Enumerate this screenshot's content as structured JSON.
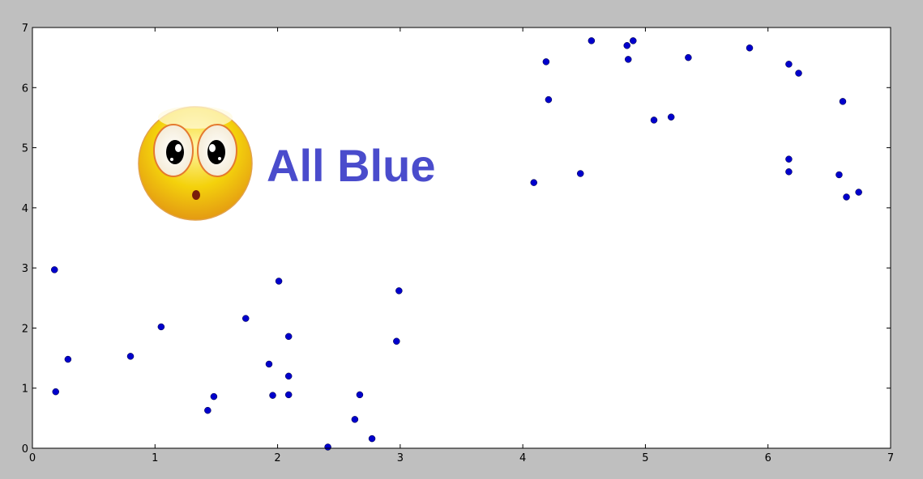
{
  "chart_data": {
    "type": "scatter",
    "title": "",
    "xlabel": "",
    "ylabel": "",
    "xlim": [
      0,
      7
    ],
    "ylim": [
      0,
      7
    ],
    "xticks": [
      0,
      1,
      2,
      3,
      4,
      5,
      6,
      7
    ],
    "yticks": [
      0,
      1,
      2,
      3,
      4,
      5,
      6,
      7
    ],
    "grid": false,
    "marker_color": "#0000cc",
    "points": [
      [
        0.18,
        2.97
      ],
      [
        0.19,
        0.94
      ],
      [
        0.29,
        1.48
      ],
      [
        0.8,
        1.53
      ],
      [
        1.05,
        2.02
      ],
      [
        1.43,
        0.63
      ],
      [
        1.48,
        0.86
      ],
      [
        1.74,
        2.16
      ],
      [
        1.93,
        1.4
      ],
      [
        1.96,
        0.88
      ],
      [
        2.01,
        2.78
      ],
      [
        2.09,
        1.86
      ],
      [
        2.09,
        1.2
      ],
      [
        2.09,
        0.89
      ],
      [
        2.41,
        0.02
      ],
      [
        2.63,
        0.48
      ],
      [
        2.67,
        0.89
      ],
      [
        2.77,
        0.16
      ],
      [
        2.97,
        1.78
      ],
      [
        2.99,
        2.62
      ],
      [
        4.09,
        4.42
      ],
      [
        4.19,
        6.43
      ],
      [
        4.21,
        5.8
      ],
      [
        4.47,
        4.57
      ],
      [
        4.56,
        6.78
      ],
      [
        4.85,
        6.7
      ],
      [
        4.86,
        6.47
      ],
      [
        4.9,
        6.78
      ],
      [
        5.07,
        5.46
      ],
      [
        5.21,
        5.51
      ],
      [
        5.35,
        6.5
      ],
      [
        5.85,
        6.66
      ],
      [
        6.17,
        4.81
      ],
      [
        6.17,
        4.6
      ],
      [
        6.17,
        6.39
      ],
      [
        6.25,
        6.24
      ],
      [
        6.58,
        4.55
      ],
      [
        6.61,
        5.77
      ],
      [
        6.64,
        4.18
      ],
      [
        6.74,
        4.26
      ]
    ]
  },
  "overlay": {
    "text": "All Blue",
    "icon": "surprised-emoji-icon",
    "text_color": "#4a4ccc"
  },
  "colors": {
    "figure_background": "#bfbfbf",
    "plot_background": "#ffffff"
  }
}
